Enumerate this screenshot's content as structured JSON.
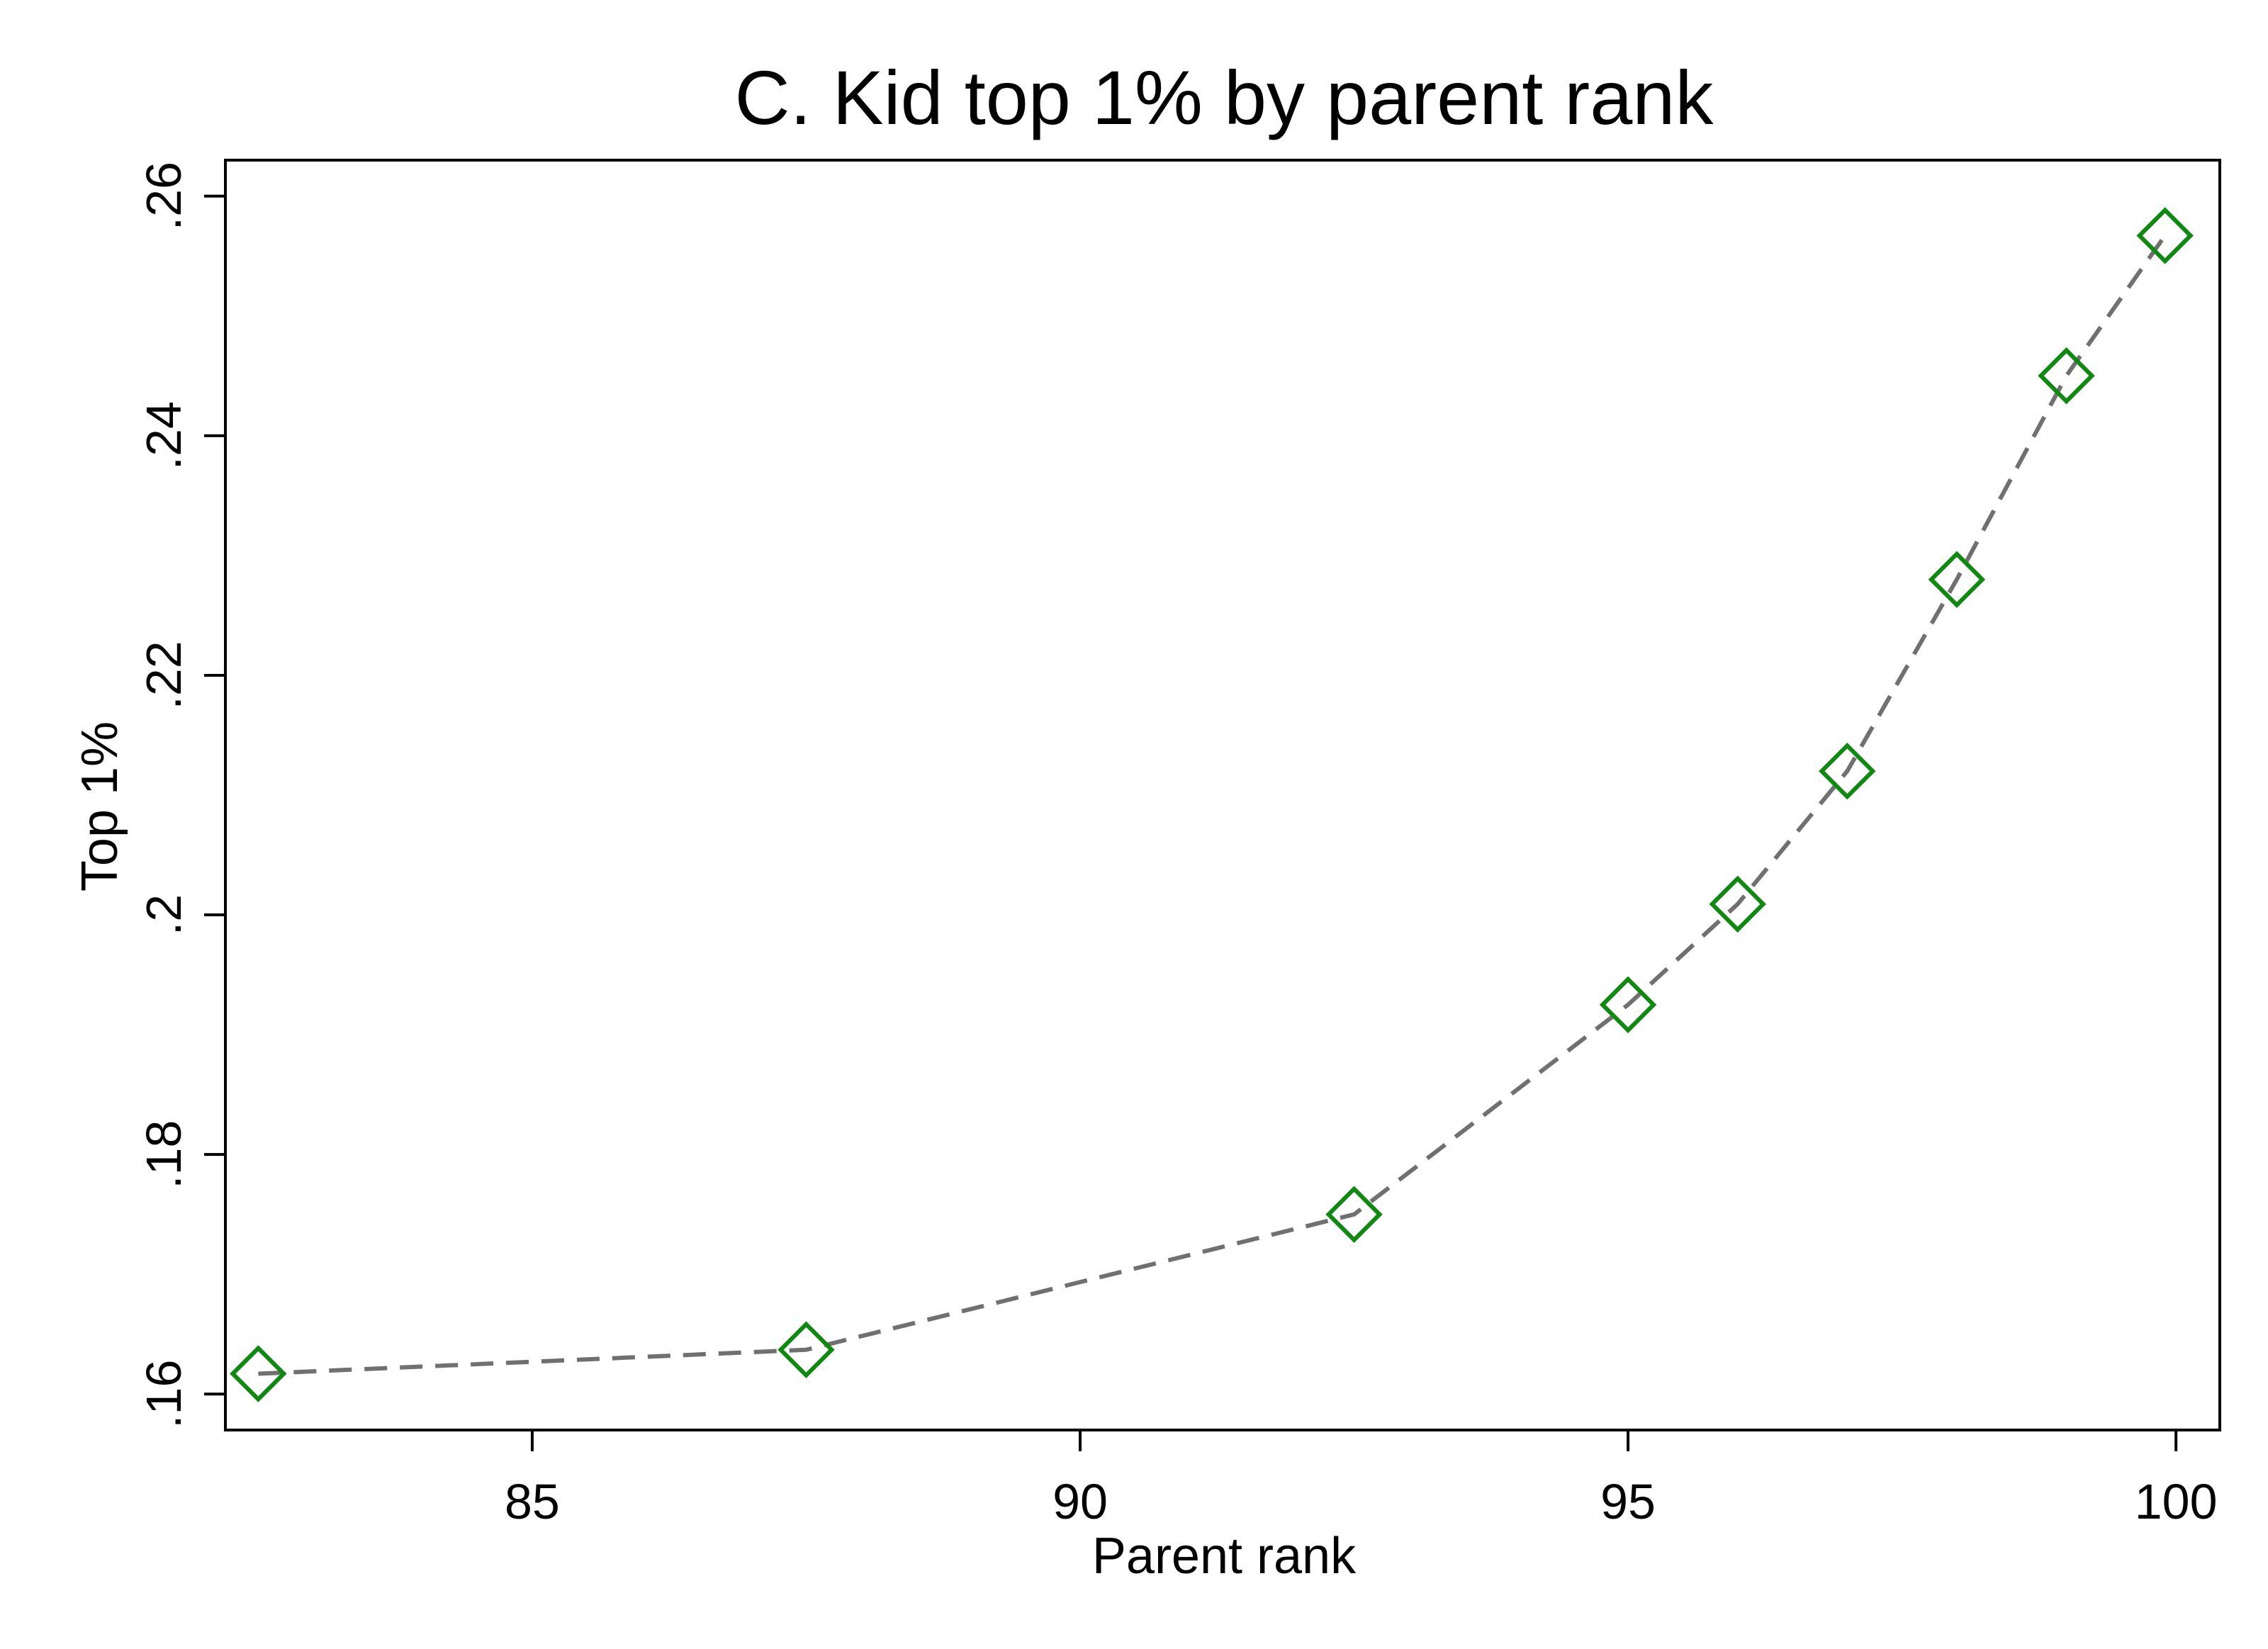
{
  "chart_data": {
    "type": "line",
    "title": "C. Kid top 1% by parent rank",
    "xlabel": "Parent rank",
    "ylabel": "Top 1%",
    "xlim": [
      82.2,
      100.4
    ],
    "ylim": [
      0.157,
      0.263
    ],
    "x_ticks": [
      85,
      90,
      95,
      100
    ],
    "x_tick_labels": [
      "85",
      "90",
      "95",
      "100"
    ],
    "y_ticks": [
      0.16,
      0.18,
      0.2,
      0.22,
      0.24,
      0.26
    ],
    "y_tick_labels": [
      ".16",
      ".18",
      ".2",
      ".22",
      ".24",
      ".26"
    ],
    "grid": false,
    "series": [
      {
        "marker": "hollow-diamond",
        "line_style": "dashed",
        "marker_color": "#118811",
        "line_color": "#707070",
        "points": [
          {
            "x": 82.5,
            "y": 0.1617
          },
          {
            "x": 87.5,
            "y": 0.1637
          },
          {
            "x": 92.5,
            "y": 0.175
          },
          {
            "x": 95.0,
            "y": 0.1925
          },
          {
            "x": 96.0,
            "y": 0.2009
          },
          {
            "x": 97.0,
            "y": 0.212
          },
          {
            "x": 98.0,
            "y": 0.228
          },
          {
            "x": 99.0,
            "y": 0.245
          },
          {
            "x": 99.9,
            "y": 0.2567
          }
        ]
      }
    ]
  }
}
